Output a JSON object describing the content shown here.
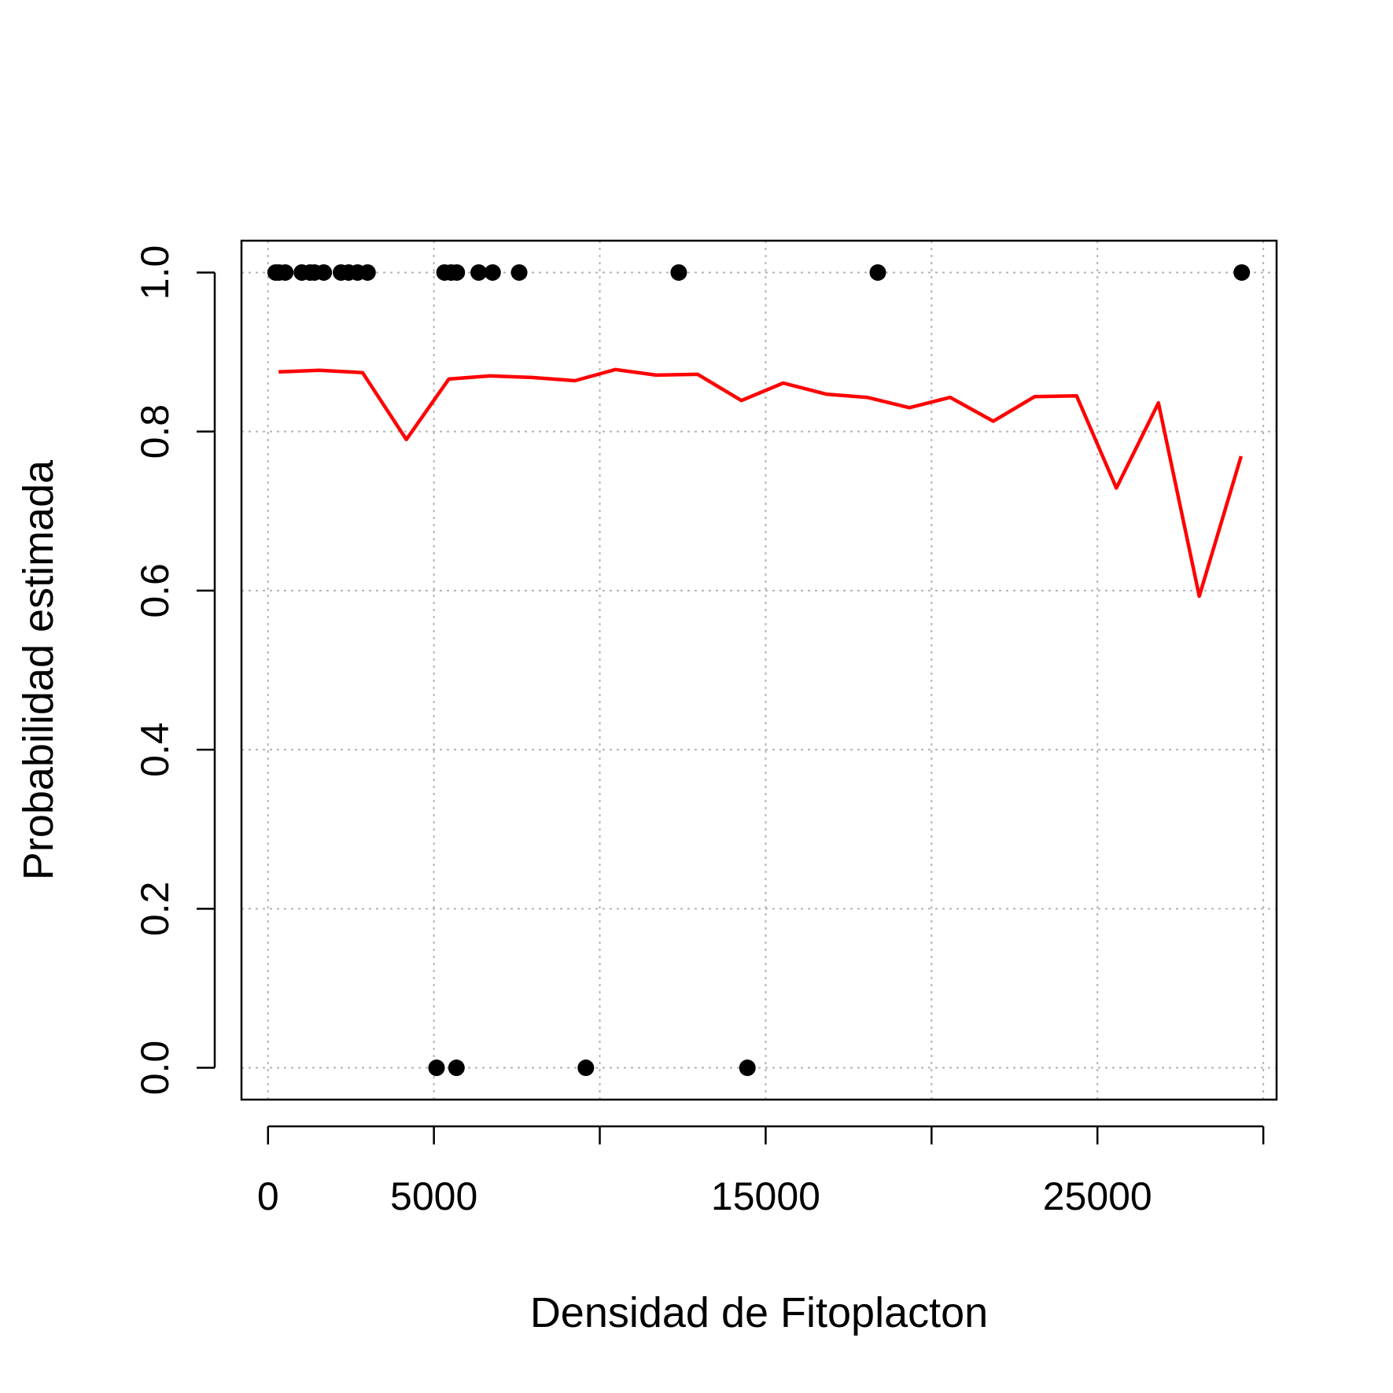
{
  "chart_data": {
    "type": "scatter",
    "title": "",
    "xlabel": "Densidad de Fitoplacton",
    "ylabel": "Probabilidad estimada",
    "xlim": [
      -800,
      30400
    ],
    "ylim": [
      -0.04,
      1.04
    ],
    "x_ticks": [
      0,
      5000,
      10000,
      15000,
      20000,
      25000,
      30000
    ],
    "x_tick_labels": [
      "0",
      "5000",
      "",
      "15000",
      "",
      "25000",
      ""
    ],
    "y_ticks": [
      0.0,
      0.2,
      0.4,
      0.6,
      0.8,
      1.0
    ],
    "y_tick_labels": [
      "0.0",
      "0.2",
      "0.4",
      "0.6",
      "0.8",
      "1.0"
    ],
    "grid": true,
    "colors": {
      "points": "#000000",
      "fitted_line": "#ff0000",
      "grid": "#b3b3b3"
    },
    "series": [
      {
        "kind": "points",
        "x": [
          230,
          330,
          520,
          1020,
          1270,
          1400,
          1680,
          2200,
          2430,
          2700,
          3000,
          5320,
          5520,
          5690,
          6350,
          6770,
          7570,
          12380,
          18380,
          29350,
          5080,
          5680,
          9580,
          14450
        ],
        "y": [
          1,
          1,
          1,
          1,
          1,
          1,
          1,
          1,
          1,
          1,
          1,
          1,
          1,
          1,
          1,
          1,
          1,
          1,
          1,
          1,
          0,
          0,
          0,
          0
        ]
      },
      {
        "kind": "line",
        "x": [
          320,
          1550,
          2850,
          4170,
          5450,
          6700,
          7950,
          9250,
          10470,
          11700,
          12950,
          14270,
          15530,
          16820,
          18060,
          19330,
          20560,
          21860,
          23110,
          24370,
          25570,
          26840,
          28070,
          29330
        ],
        "y": [
          0.875,
          0.877,
          0.874,
          0.79,
          0.866,
          0.87,
          0.868,
          0.864,
          0.878,
          0.871,
          0.872,
          0.839,
          0.861,
          0.847,
          0.843,
          0.83,
          0.843,
          0.813,
          0.844,
          0.845,
          0.729,
          0.836,
          0.593,
          0.769
        ]
      }
    ]
  }
}
